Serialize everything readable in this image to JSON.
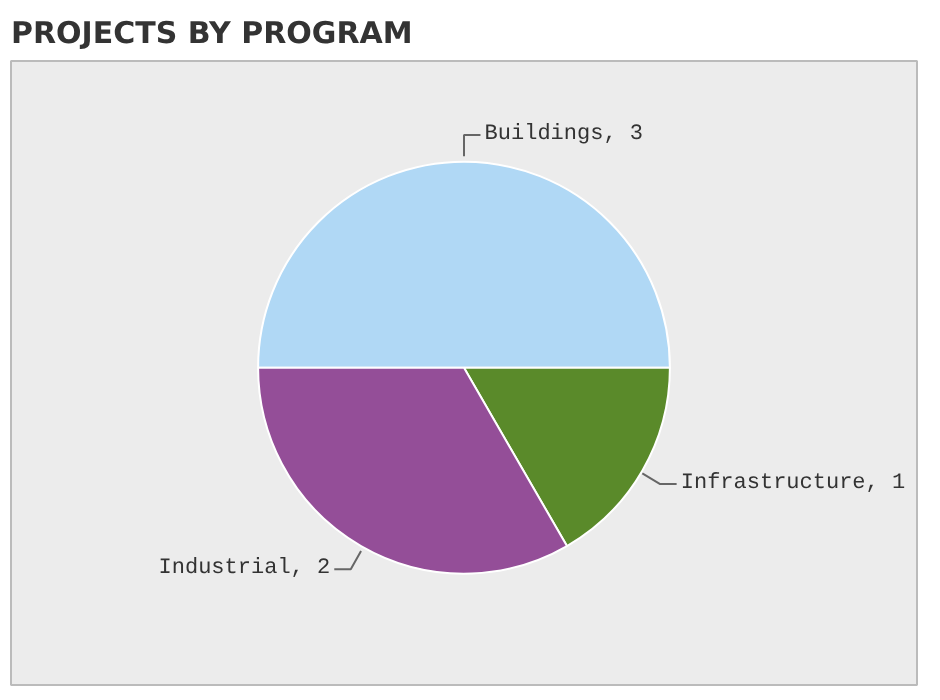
{
  "chart_data": {
    "type": "pie",
    "title": "PROJECTS BY PROGRAM",
    "categories": [
      "Buildings",
      "Infrastructure",
      "Industrial"
    ],
    "values": [
      3,
      1,
      2
    ],
    "value_labels": [
      ", 3",
      ", 1",
      ", 2"
    ],
    "colors": [
      "#b0d8f5",
      "#5a8a2a",
      "#944e98"
    ]
  }
}
